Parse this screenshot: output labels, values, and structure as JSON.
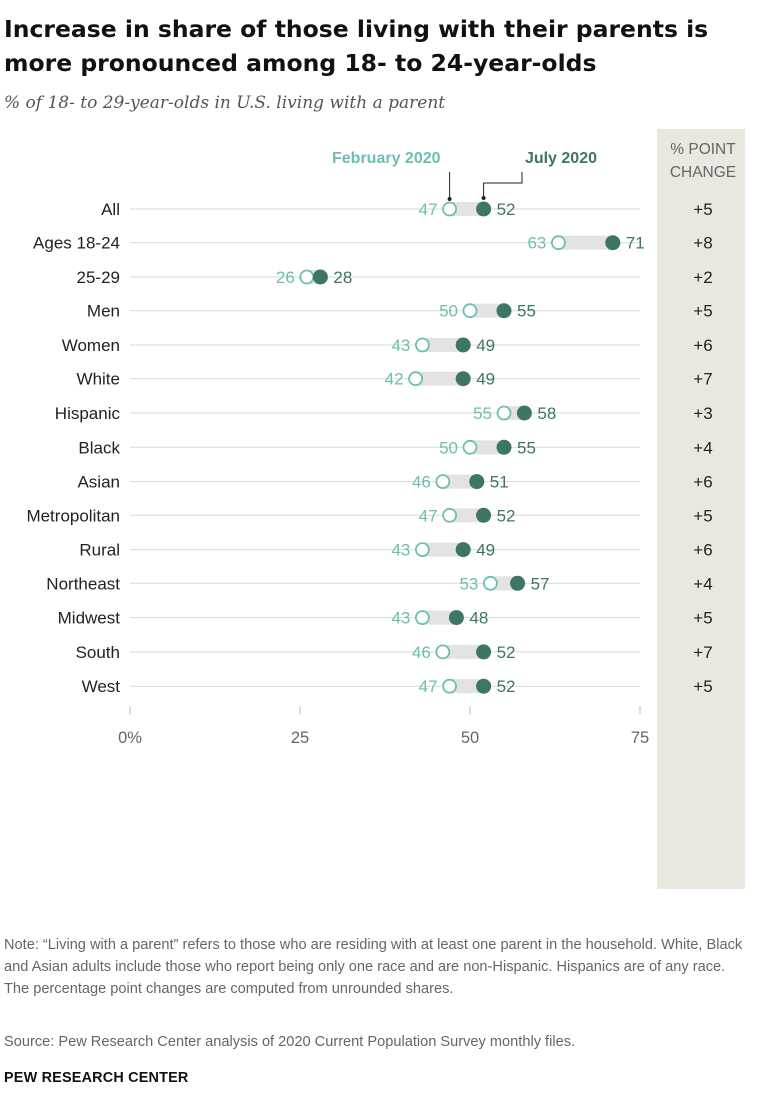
{
  "title": "Increase in share of those living with their parents is more pronounced among 18- to 24-year-olds",
  "subtitle": "% of 18- to 29-year-olds in U.S. living with a parent",
  "note": "Note: “Living with a parent” refers to those who are residing with at least one parent in the household. White, Black and Asian adults include those who report being only one race and are non-Hispanic. Hispanics are of any race. The percentage point changes are computed from unrounded shares.",
  "source": "Source: Pew Research Center analysis of 2020 Current Population Survey monthly files.",
  "brand": "PEW RESEARCH CENTER",
  "colors": {
    "february": "#6cbfb0",
    "july": "#3d7566",
    "change_column_bg": "#e9e7df",
    "range_bar": "#e3e3e3",
    "gridline": "#d9d9d9"
  },
  "chart_data": {
    "type": "dot-plot",
    "xlim": [
      0,
      75
    ],
    "xticks": [
      0,
      25,
      50,
      75
    ],
    "xtick_labels": [
      "0%",
      "25",
      "50",
      "75"
    ],
    "series": [
      {
        "name": "February  2020"
      },
      {
        "name": "July 2020"
      }
    ],
    "change_header": [
      "% POINT",
      "CHANGE"
    ],
    "groups": [
      [
        {
          "label": "All",
          "feb": 47,
          "jul": 52,
          "change": "+5"
        }
      ],
      [
        {
          "label": "Ages 18-24",
          "feb": 63,
          "jul": 71,
          "change": "+8"
        },
        {
          "label": "25-29",
          "feb": 26,
          "jul": 28,
          "change": "+2"
        }
      ],
      [
        {
          "label": "Men",
          "feb": 50,
          "jul": 55,
          "change": "+5"
        },
        {
          "label": "Women",
          "feb": 43,
          "jul": 49,
          "change": "+6"
        }
      ],
      [
        {
          "label": "White",
          "feb": 42,
          "jul": 49,
          "change": "+7"
        },
        {
          "label": "Hispanic",
          "feb": 55,
          "jul": 58,
          "change": "+3"
        },
        {
          "label": "Black",
          "feb": 50,
          "jul": 55,
          "change": "+4"
        },
        {
          "label": "Asian",
          "feb": 46,
          "jul": 51,
          "change": "+6"
        }
      ],
      [
        {
          "label": "Metropolitan",
          "feb": 47,
          "jul": 52,
          "change": "+5"
        },
        {
          "label": "Rural",
          "feb": 43,
          "jul": 49,
          "change": "+6"
        }
      ],
      [
        {
          "label": "Northeast",
          "feb": 53,
          "jul": 57,
          "change": "+4"
        },
        {
          "label": "Midwest",
          "feb": 43,
          "jul": 48,
          "change": "+5"
        },
        {
          "label": "South",
          "feb": 46,
          "jul": 52,
          "change": "+7"
        },
        {
          "label": "West",
          "feb": 47,
          "jul": 52,
          "change": "+5"
        }
      ]
    ]
  }
}
